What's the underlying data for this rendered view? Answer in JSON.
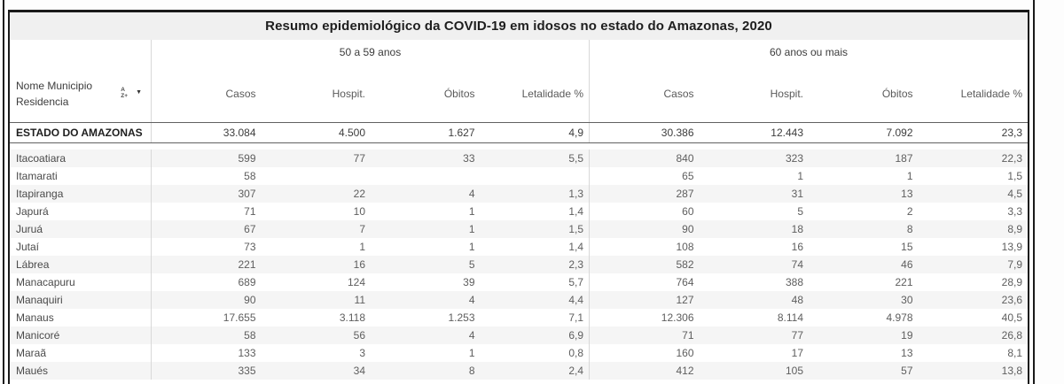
{
  "table": {
    "title": "Resumo epidemiológico da COVID-19 em idosos no estado do Amazonas, 2020",
    "row_header": {
      "label_line1": "Nome Municipio",
      "label_line2": "Residencia",
      "sort_letter_top": "A",
      "sort_letter_bottom": "Z+",
      "caret": "▼"
    },
    "groups": [
      {
        "label": "50 a 59 anos"
      },
      {
        "label": "60 anos ou mais"
      }
    ],
    "columns": [
      "Casos",
      "Hospit.",
      "Óbitos",
      "Letalidade %",
      "Casos",
      "Hospit.",
      "Óbitos",
      "Letalidade %"
    ],
    "total_row": {
      "name": "ESTADO DO AMAZONAS",
      "values": [
        "33.084",
        "4.500",
        "1.627",
        "4,9",
        "30.386",
        "12.443",
        "7.092",
        "23,3"
      ]
    },
    "rows": [
      {
        "name": "Itacoatiara",
        "values": [
          "599",
          "77",
          "33",
          "5,5",
          "840",
          "323",
          "187",
          "22,3"
        ]
      },
      {
        "name": "Itamarati",
        "values": [
          "58",
          "",
          "",
          "",
          "65",
          "1",
          "1",
          "1,5"
        ]
      },
      {
        "name": "Itapiranga",
        "values": [
          "307",
          "22",
          "4",
          "1,3",
          "287",
          "31",
          "13",
          "4,5"
        ]
      },
      {
        "name": "Japurá",
        "values": [
          "71",
          "10",
          "1",
          "1,4",
          "60",
          "5",
          "2",
          "3,3"
        ]
      },
      {
        "name": "Juruá",
        "values": [
          "67",
          "7",
          "1",
          "1,5",
          "90",
          "18",
          "8",
          "8,9"
        ]
      },
      {
        "name": "Jutaí",
        "values": [
          "73",
          "1",
          "1",
          "1,4",
          "108",
          "16",
          "15",
          "13,9"
        ]
      },
      {
        "name": "Lábrea",
        "values": [
          "221",
          "16",
          "5",
          "2,3",
          "582",
          "74",
          "46",
          "7,9"
        ]
      },
      {
        "name": "Manacapuru",
        "values": [
          "689",
          "124",
          "39",
          "5,7",
          "764",
          "388",
          "221",
          "28,9"
        ]
      },
      {
        "name": "Manaquiri",
        "values": [
          "90",
          "11",
          "4",
          "4,4",
          "127",
          "48",
          "30",
          "23,6"
        ]
      },
      {
        "name": "Manaus",
        "values": [
          "17.655",
          "3.118",
          "1.253",
          "7,1",
          "12.306",
          "8.114",
          "4.978",
          "40,5"
        ]
      },
      {
        "name": "Manicoré",
        "values": [
          "58",
          "56",
          "4",
          "6,9",
          "71",
          "77",
          "19",
          "26,8"
        ]
      },
      {
        "name": "Maraã",
        "values": [
          "133",
          "3",
          "1",
          "0,8",
          "160",
          "17",
          "13",
          "8,1"
        ]
      },
      {
        "name": "Maués",
        "values": [
          "335",
          "34",
          "8",
          "2,4",
          "412",
          "105",
          "57",
          "13,8"
        ]
      }
    ]
  }
}
